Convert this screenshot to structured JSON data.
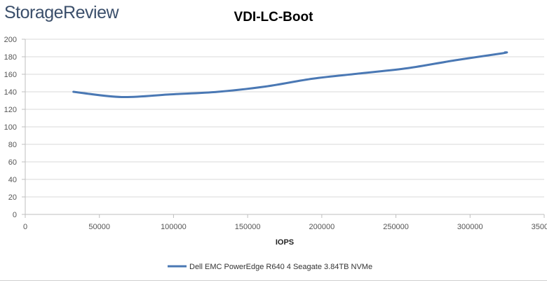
{
  "logo": {
    "text": "StorageReview"
  },
  "chart_data": {
    "type": "line",
    "title": "VDI-LC-Boot",
    "xlabel": "IOPS",
    "ylabel": "",
    "xlim": [
      0,
      350000
    ],
    "ylim": [
      0,
      200
    ],
    "x_ticks": [
      0,
      50000,
      100000,
      150000,
      200000,
      250000,
      300000,
      350000
    ],
    "x_tick_labels": [
      "0",
      "50000",
      "100000",
      "150000",
      "200000",
      "250000",
      "300000",
      "350000"
    ],
    "y_ticks": [
      0,
      20,
      40,
      60,
      80,
      100,
      120,
      140,
      160,
      180,
      200
    ],
    "y_tick_labels": [
      "0",
      "20",
      "40",
      "60",
      "80",
      "100",
      "120",
      "140",
      "160",
      "180",
      "200"
    ],
    "grid": true,
    "legend_position": "bottom",
    "series": [
      {
        "name": "Dell EMC PowerEdge R640 4 Seagate 3.84TB NVMe",
        "color": "#4a78b4",
        "points": [
          {
            "x": 32500,
            "y": 140
          },
          {
            "x": 65000,
            "y": 134
          },
          {
            "x": 97500,
            "y": 137
          },
          {
            "x": 130000,
            "y": 140
          },
          {
            "x": 162000,
            "y": 146
          },
          {
            "x": 194000,
            "y": 155
          },
          {
            "x": 226000,
            "y": 161
          },
          {
            "x": 258000,
            "y": 167
          },
          {
            "x": 290000,
            "y": 176
          },
          {
            "x": 322000,
            "y": 184
          },
          {
            "x": 323500,
            "y": 185
          }
        ]
      }
    ]
  }
}
